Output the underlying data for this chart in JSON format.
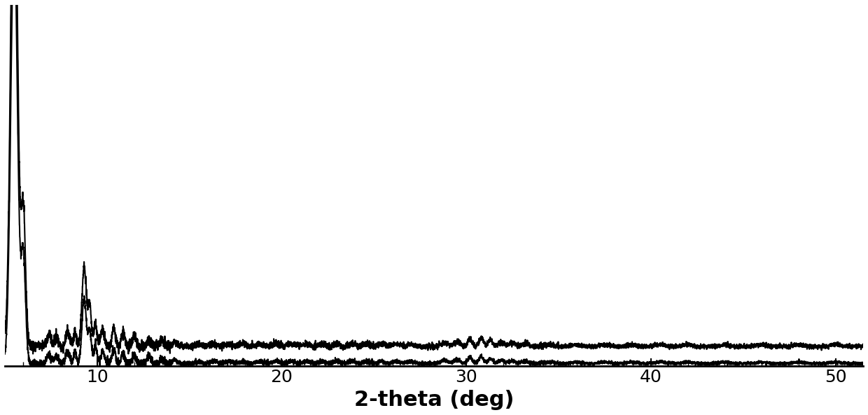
{
  "xlabel": "2-theta (deg)",
  "xlabel_fontsize": 22,
  "tick_fontsize": 18,
  "line_color": "#000000",
  "background_color": "#ffffff",
  "xlim": [
    5.0,
    51.5
  ],
  "ylim": [
    -0.05,
    8.0
  ],
  "x_ticks": [
    10,
    20,
    30,
    40,
    50
  ],
  "line_width": 1.5,
  "seed1": 42,
  "seed2": 99
}
